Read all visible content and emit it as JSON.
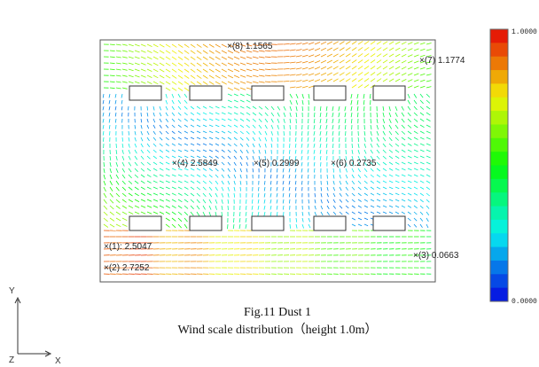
{
  "figure": {
    "probes": [
      {
        "text": "×(1): 2.5047"
      },
      {
        "text": "×(2) 2.7252"
      },
      {
        "text": "×(3) 0.0663"
      },
      {
        "text": "×(4) 2.5849"
      },
      {
        "text": "×(5) 0.2999"
      },
      {
        "text": "×(6) 0.2735"
      },
      {
        "text": "×(7) 1.1774"
      },
      {
        "text": "×(8) 1.1565"
      }
    ],
    "colorbar": {
      "max_label": "1.0000",
      "min_label": "0.0000"
    },
    "axes": {
      "y": "Y",
      "x": "X",
      "z": "Z"
    },
    "caption": {
      "line1": "Fig.11 Dust 1",
      "line2": "Wind scale distribution（height 1.0m）"
    }
  }
}
